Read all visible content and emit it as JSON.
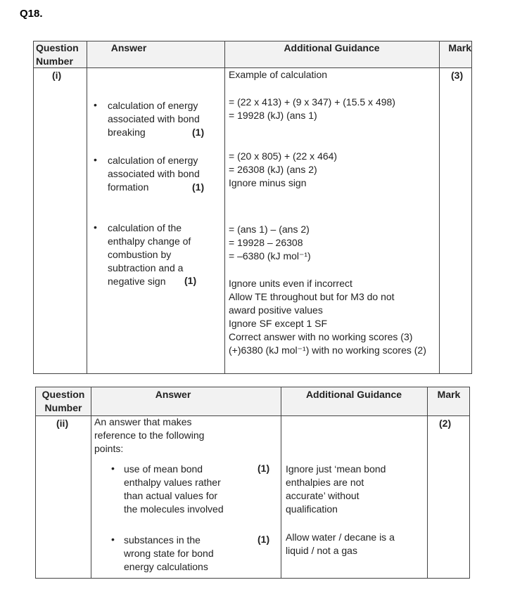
{
  "question_label": "Q18.",
  "headers": {
    "question_number": "Question Number",
    "answer": "Answer",
    "additional_guidance": "Additional Guidance",
    "mark": "Mark"
  },
  "part_i": {
    "number": "(i)",
    "mark": "(3)",
    "answer_points": [
      {
        "lines": [
          "calculation of energy",
          "associated with bond",
          "breaking"
        ],
        "mark": "(1)"
      },
      {
        "lines": [
          "calculation of energy",
          "associated with bond",
          "formation"
        ],
        "mark": "(1)"
      },
      {
        "lines": [
          "calculation of the",
          "enthalpy change of",
          "combustion by",
          "subtraction and a",
          "negative sign"
        ],
        "mark": "(1)"
      }
    ],
    "guidance": [
      [
        "Example of calculation"
      ],
      [
        "= (22 x 413) + (9 x 347) + (15.5 x 498)",
        "= 19928 (kJ) (ans 1)"
      ],
      [
        "= (20 x 805) + (22 x 464)",
        "= 26308 (kJ) (ans 2)",
        "Ignore minus sign"
      ],
      [
        "= (ans 1) – (ans 2)",
        "= 19928 – 26308",
        "= –6380 (kJ mol⁻¹)"
      ],
      [
        "Ignore units even if incorrect",
        "Allow TE throughout but for M3 do not",
        "award positive values",
        "Ignore SF except 1 SF",
        "Correct answer with no working scores (3)",
        "(+)6380 (kJ mol⁻¹) with no working scores (2)"
      ]
    ]
  },
  "part_ii": {
    "number": "(ii)",
    "mark": "(2)",
    "intro": [
      "An answer that makes",
      "reference to the following",
      "points:"
    ],
    "answer_points": [
      {
        "lines": [
          "use of mean bond",
          "enthalpy values rather",
          "than actual values for",
          "the molecules involved"
        ],
        "mark": "(1)"
      },
      {
        "lines": [
          "substances in the",
          "wrong state for bond",
          "energy calculations"
        ],
        "mark": "(1)"
      }
    ],
    "guidance": [
      [
        "Ignore just ‘mean bond",
        "enthalpies are not",
        "accurate’ without",
        "qualification"
      ],
      [
        "Allow water / decane is a",
        "liquid / not a gas"
      ]
    ]
  }
}
